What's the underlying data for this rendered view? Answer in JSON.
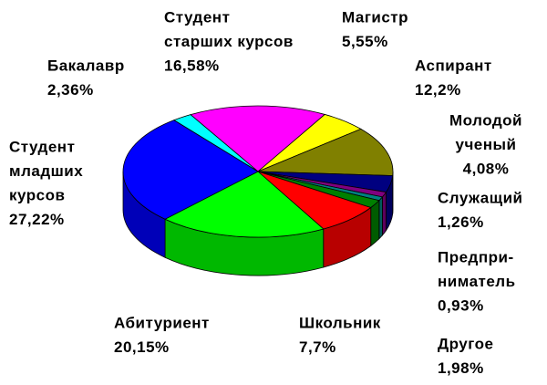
{
  "chart_data": {
    "type": "pie3d",
    "categories": [
      [
        "Студент",
        "старших курсов"
      ],
      [
        "Магистр"
      ],
      [
        "Аспирант"
      ],
      [
        "Молодой",
        "ученый"
      ],
      [
        "Служащий"
      ],
      [
        "Предпри-",
        "ниматель"
      ],
      [
        "Другое"
      ],
      [
        "Школьник"
      ],
      [
        "Абитуриент"
      ],
      [
        "Студент",
        "младших",
        "курсов"
      ],
      [
        "Бакалавр"
      ]
    ],
    "values": [
      16.58,
      5.55,
      12.2,
      4.08,
      1.26,
      0.93,
      1.98,
      7.7,
      20.15,
      27.22,
      2.36
    ],
    "value_labels": [
      "16,58%",
      "5,55%",
      "12,2%",
      "4,08%",
      "1,26%",
      "0,93%",
      "1,98%",
      "7,7%",
      "20,15%",
      "27,22%",
      "2,36%"
    ],
    "colors": [
      "#ff00ff",
      "#ffff00",
      "#808000",
      "#000080",
      "#800080",
      "#008080",
      "#008000",
      "#ff0000",
      "#00ff00",
      "#0000ff",
      "#00ffff"
    ]
  }
}
